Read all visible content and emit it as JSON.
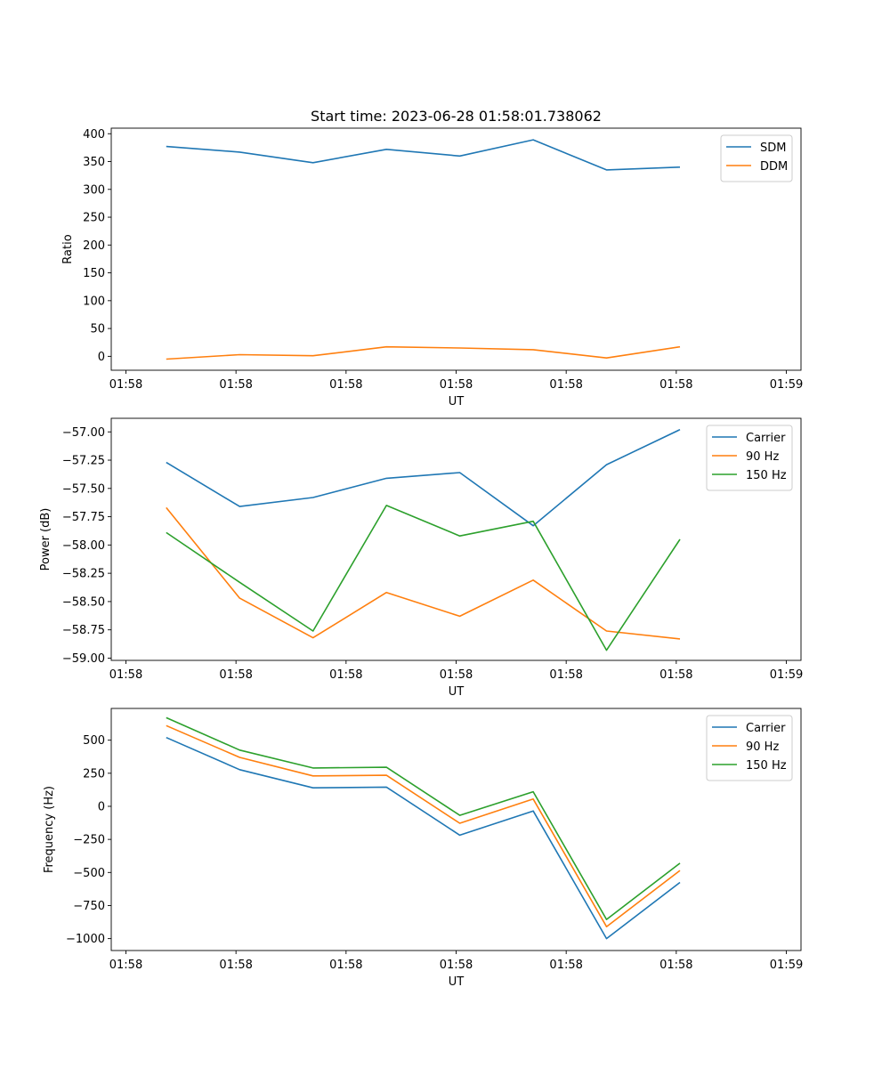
{
  "figure": {
    "title": "Start time: 2023-06-28 01:58:01.738062"
  },
  "chart_data": [
    {
      "type": "line",
      "title": "Start time: 2023-06-28 01:58:01.738062",
      "xlabel": "UT",
      "ylabel": "Ratio",
      "x_tick_labels": [
        "01:58",
        "01:58",
        "01:58",
        "01:58",
        "01:58",
        "01:58",
        "01:59"
      ],
      "y_ticks": [
        0,
        50,
        100,
        150,
        200,
        250,
        300,
        350,
        400
      ],
      "ylim": [
        -25,
        410
      ],
      "legend_position": "top-right",
      "x": [
        1,
        2,
        3,
        4,
        5,
        6,
        7,
        8
      ],
      "series": [
        {
          "name": "SDM",
          "color": "#1f77b4",
          "values": [
            377,
            367,
            348,
            372,
            360,
            389,
            335,
            340
          ]
        },
        {
          "name": "DDM",
          "color": "#ff7f0e",
          "values": [
            -5,
            3,
            1,
            17,
            15,
            12,
            -3,
            17
          ]
        }
      ]
    },
    {
      "type": "line",
      "xlabel": "UT",
      "ylabel": "Power (dB)",
      "x_tick_labels": [
        "01:58",
        "01:58",
        "01:58",
        "01:58",
        "01:58",
        "01:58",
        "01:59"
      ],
      "y_ticks": [
        -59.0,
        -58.75,
        -58.5,
        -58.25,
        -58.0,
        -57.75,
        -57.5,
        -57.25,
        -57.0
      ],
      "y_tick_labels": [
        "−59.00",
        "−58.75",
        "−58.50",
        "−58.25",
        "−58.00",
        "−57.75",
        "−57.50",
        "−57.25",
        "−57.00"
      ],
      "ylim": [
        -59.02,
        -56.88
      ],
      "legend_position": "top-right",
      "x": [
        1,
        2,
        3,
        4,
        5,
        6,
        7,
        8
      ],
      "series": [
        {
          "name": "Carrier",
          "color": "#1f77b4",
          "values": [
            -57.27,
            -57.66,
            -57.58,
            -57.41,
            -57.36,
            -57.83,
            -57.29,
            -56.98
          ]
        },
        {
          "name": "90 Hz",
          "color": "#ff7f0e",
          "values": [
            -57.67,
            -58.47,
            -58.82,
            -58.42,
            -58.63,
            -58.31,
            -58.76,
            -58.83
          ]
        },
        {
          "name": "150 Hz",
          "color": "#2ca02c",
          "values": [
            -57.89,
            -58.33,
            -58.76,
            -57.65,
            -57.92,
            -57.79,
            -58.93,
            -57.95
          ]
        }
      ]
    },
    {
      "type": "line",
      "xlabel": "UT",
      "ylabel": "Frequency (Hz)",
      "x_tick_labels": [
        "01:58",
        "01:58",
        "01:58",
        "01:58",
        "01:58",
        "01:58",
        "01:59"
      ],
      "y_ticks": [
        -1000,
        -750,
        -500,
        -250,
        0,
        250,
        500
      ],
      "y_tick_labels": [
        "−1000",
        "−750",
        "−500",
        "−250",
        "0",
        "250",
        "500"
      ],
      "ylim": [
        -1090,
        740
      ],
      "legend_position": "top-right",
      "x": [
        1,
        2,
        3,
        4,
        5,
        6,
        7,
        8
      ],
      "series": [
        {
          "name": "Carrier",
          "color": "#1f77b4",
          "values": [
            520,
            277,
            140,
            145,
            -218,
            -35,
            -1000,
            -575
          ]
        },
        {
          "name": "90 Hz",
          "color": "#ff7f0e",
          "values": [
            610,
            370,
            230,
            235,
            -128,
            55,
            -910,
            -485
          ]
        },
        {
          "name": "150 Hz",
          "color": "#2ca02c",
          "values": [
            670,
            425,
            290,
            295,
            -68,
            110,
            -855,
            -430
          ]
        }
      ]
    }
  ]
}
